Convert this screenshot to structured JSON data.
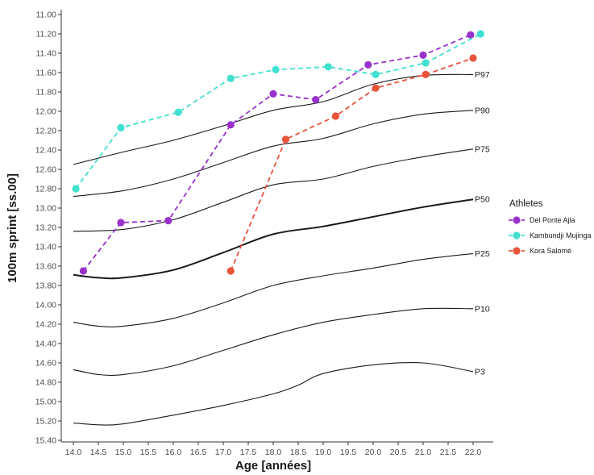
{
  "chart_data": {
    "type": "line",
    "title": "",
    "xlabel": "Age [années]",
    "ylabel": "100m sprint [ss.00]",
    "xlim": [
      13.9,
      22.5
    ],
    "ylim": [
      11.0,
      15.45
    ],
    "y_reversed": true,
    "grid": false,
    "legend_placement": "right",
    "x_ticks": [
      "14.0",
      "14.5",
      "15.0",
      "15.5",
      "16.0",
      "16.5",
      "17.0",
      "17.5",
      "18.0",
      "18.5",
      "19.0",
      "19.5",
      "20.0",
      "20.5",
      "21.0",
      "21.5",
      "22.0"
    ],
    "y_ticks": [
      "11.00",
      "11.20",
      "11.40",
      "11.60",
      "11.80",
      "12.00",
      "12.20",
      "12.40",
      "12.60",
      "12.80",
      "13.00",
      "13.20",
      "13.40",
      "13.60",
      "13.80",
      "14.00",
      "14.20",
      "14.40",
      "14.60",
      "14.80",
      "15.00",
      "15.20",
      "15.40"
    ],
    "percentile_curves": [
      {
        "label": "P97",
        "bold": false,
        "points": [
          [
            14.0,
            12.55
          ],
          [
            15.0,
            12.42
          ],
          [
            16.0,
            12.3
          ],
          [
            17.0,
            12.15
          ],
          [
            18.0,
            11.99
          ],
          [
            19.0,
            11.9
          ],
          [
            20.0,
            11.72
          ],
          [
            21.0,
            11.63
          ],
          [
            22.0,
            11.62
          ]
        ]
      },
      {
        "label": "P90",
        "bold": false,
        "points": [
          [
            14.0,
            12.88
          ],
          [
            15.0,
            12.82
          ],
          [
            16.0,
            12.7
          ],
          [
            17.0,
            12.53
          ],
          [
            18.0,
            12.36
          ],
          [
            19.0,
            12.28
          ],
          [
            20.0,
            12.13
          ],
          [
            21.0,
            12.03
          ],
          [
            22.0,
            11.99
          ]
        ]
      },
      {
        "label": "P75",
        "bold": false,
        "points": [
          [
            14.0,
            13.24
          ],
          [
            15.0,
            13.22
          ],
          [
            16.0,
            13.12
          ],
          [
            17.0,
            12.94
          ],
          [
            18.0,
            12.76
          ],
          [
            19.0,
            12.7
          ],
          [
            20.0,
            12.57
          ],
          [
            21.0,
            12.47
          ],
          [
            22.0,
            12.39
          ]
        ]
      },
      {
        "label": "P50",
        "bold": true,
        "points": [
          [
            14.0,
            13.69
          ],
          [
            14.5,
            13.72
          ],
          [
            15.0,
            13.72
          ],
          [
            16.0,
            13.64
          ],
          [
            17.0,
            13.46
          ],
          [
            18.0,
            13.27
          ],
          [
            19.0,
            13.19
          ],
          [
            20.0,
            13.09
          ],
          [
            21.0,
            12.99
          ],
          [
            22.0,
            12.91
          ]
        ]
      },
      {
        "label": "P25",
        "bold": false,
        "points": [
          [
            14.0,
            14.18
          ],
          [
            14.5,
            14.22
          ],
          [
            15.0,
            14.22
          ],
          [
            16.0,
            14.14
          ],
          [
            17.0,
            13.98
          ],
          [
            18.0,
            13.8
          ],
          [
            19.0,
            13.7
          ],
          [
            20.0,
            13.62
          ],
          [
            21.0,
            13.53
          ],
          [
            22.0,
            13.47
          ]
        ]
      },
      {
        "label": "P10",
        "bold": false,
        "points": [
          [
            14.0,
            14.67
          ],
          [
            14.5,
            14.72
          ],
          [
            15.0,
            14.72
          ],
          [
            16.0,
            14.63
          ],
          [
            17.0,
            14.47
          ],
          [
            18.0,
            14.31
          ],
          [
            19.0,
            14.18
          ],
          [
            20.0,
            14.1
          ],
          [
            21.0,
            14.04
          ],
          [
            22.0,
            14.04
          ]
        ]
      },
      {
        "label": "P3",
        "bold": false,
        "points": [
          [
            14.0,
            15.22
          ],
          [
            14.5,
            15.24
          ],
          [
            15.0,
            15.23
          ],
          [
            16.0,
            15.14
          ],
          [
            17.0,
            15.04
          ],
          [
            18.0,
            14.92
          ],
          [
            18.5,
            14.83
          ],
          [
            19.0,
            14.71
          ],
          [
            20.0,
            14.62
          ],
          [
            21.0,
            14.6
          ],
          [
            22.0,
            14.69
          ]
        ]
      }
    ],
    "series": [
      {
        "name": "Del Ponte Ajla",
        "color": "#9932CC",
        "points": [
          [
            14.2,
            13.65
          ],
          [
            14.95,
            13.15
          ],
          [
            15.9,
            13.13
          ],
          [
            17.15,
            12.14
          ],
          [
            18.0,
            11.82
          ],
          [
            18.85,
            11.88
          ],
          [
            19.9,
            11.52
          ],
          [
            21.0,
            11.42
          ],
          [
            21.95,
            11.21
          ]
        ]
      },
      {
        "name": "Kambundji Mujinga",
        "color": "#40E0D0",
        "points": [
          [
            14.05,
            12.8
          ],
          [
            14.95,
            12.17
          ],
          [
            16.1,
            12.01
          ],
          [
            17.15,
            11.66
          ],
          [
            18.05,
            11.57
          ],
          [
            19.1,
            11.54
          ],
          [
            20.05,
            11.62
          ],
          [
            21.05,
            11.5
          ],
          [
            22.15,
            11.2
          ]
        ]
      },
      {
        "name": "Kora Salomé",
        "color": "#E8533A",
        "points": [
          [
            17.15,
            13.65
          ],
          [
            18.25,
            12.29
          ],
          [
            19.25,
            12.05
          ],
          [
            20.05,
            11.76
          ],
          [
            21.05,
            11.62
          ],
          [
            22.0,
            11.45
          ]
        ]
      }
    ]
  },
  "legend": {
    "title": "Athletes"
  }
}
